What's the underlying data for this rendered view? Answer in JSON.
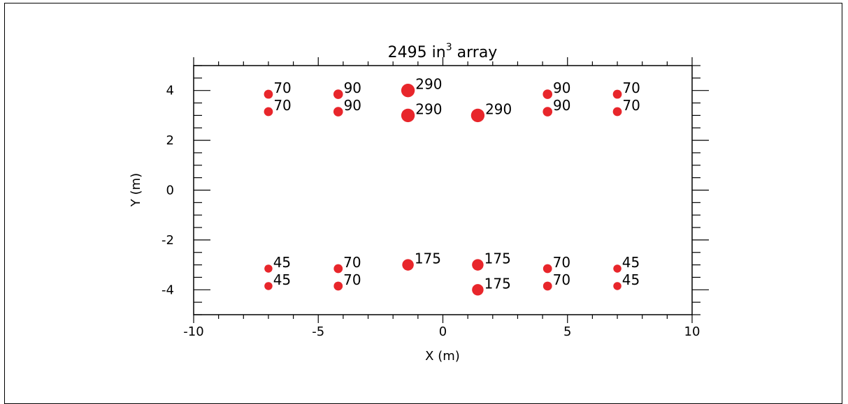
{
  "chart_data": {
    "type": "scatter",
    "title_main": "2495 in",
    "title_sup": "3",
    "title_rest": " array",
    "xlabel": "X (m)",
    "ylabel": "Y (m)",
    "xlim": [
      -10,
      10
    ],
    "ylim": [
      -5,
      5
    ],
    "xticks": [
      -10,
      -5,
      0,
      5,
      10
    ],
    "yticks": [
      -4,
      -2,
      0,
      2,
      4
    ],
    "grid": false,
    "marker_color": "#e8262b",
    "points": [
      {
        "x": -7.0,
        "y": 3.85,
        "size": 70,
        "label": "70"
      },
      {
        "x": -7.0,
        "y": 3.15,
        "size": 70,
        "label": "70"
      },
      {
        "x": -4.2,
        "y": 3.85,
        "size": 90,
        "label": "90"
      },
      {
        "x": -4.2,
        "y": 3.15,
        "size": 90,
        "label": "90"
      },
      {
        "x": -1.4,
        "y": 4.0,
        "size": 290,
        "label": "290"
      },
      {
        "x": -1.4,
        "y": 3.0,
        "size": 290,
        "label": "290"
      },
      {
        "x": 1.4,
        "y": 3.0,
        "size": 290,
        "label": "290"
      },
      {
        "x": 4.2,
        "y": 3.85,
        "size": 90,
        "label": "90"
      },
      {
        "x": 4.2,
        "y": 3.15,
        "size": 90,
        "label": "90"
      },
      {
        "x": 7.0,
        "y": 3.85,
        "size": 70,
        "label": "70"
      },
      {
        "x": 7.0,
        "y": 3.15,
        "size": 70,
        "label": "70"
      },
      {
        "x": -7.0,
        "y": -3.15,
        "size": 45,
        "label": "45"
      },
      {
        "x": -7.0,
        "y": -3.85,
        "size": 45,
        "label": "45"
      },
      {
        "x": -4.2,
        "y": -3.15,
        "size": 70,
        "label": "70"
      },
      {
        "x": -4.2,
        "y": -3.85,
        "size": 70,
        "label": "70"
      },
      {
        "x": -1.4,
        "y": -3.0,
        "size": 175,
        "label": "175"
      },
      {
        "x": 1.4,
        "y": -3.0,
        "size": 175,
        "label": "175"
      },
      {
        "x": 1.4,
        "y": -4.0,
        "size": 175,
        "label": "175"
      },
      {
        "x": 4.2,
        "y": -3.15,
        "size": 70,
        "label": "70"
      },
      {
        "x": 4.2,
        "y": -3.85,
        "size": 70,
        "label": "70"
      },
      {
        "x": 7.0,
        "y": -3.15,
        "size": 45,
        "label": "45"
      },
      {
        "x": 7.0,
        "y": -3.85,
        "size": 45,
        "label": "45"
      }
    ]
  }
}
